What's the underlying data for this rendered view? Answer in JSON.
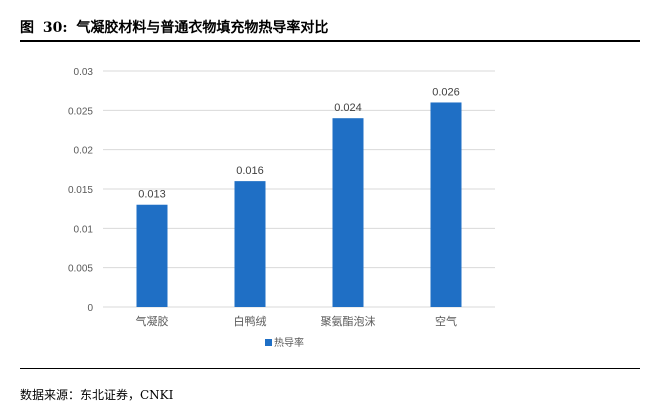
{
  "figure": {
    "label": "图",
    "number": "30:",
    "title": "气凝胶材料与普通衣物填充物热导率对比",
    "source": "数据来源：东北证券，CNKI"
  },
  "colors": {
    "bar": "#1F6FC5",
    "grid": "#D9D9D9",
    "tick_text": "#595959",
    "label_text": "#404040"
  },
  "chart_data": {
    "type": "bar",
    "categories": [
      "气凝胶",
      "白鸭绒",
      "聚氨酯泡沫",
      "空气"
    ],
    "series": [
      {
        "name": "热导率",
        "values": [
          0.013,
          0.016,
          0.024,
          0.026
        ]
      }
    ],
    "data_labels": [
      "0.013",
      "0.016",
      "0.024",
      "0.026"
    ],
    "y_ticks": [
      0,
      0.005,
      0.01,
      0.015,
      0.02,
      0.025,
      0.03
    ],
    "y_tick_labels": [
      "0",
      "0.005",
      "0.01",
      "0.015",
      "0.02",
      "0.025",
      "0.03"
    ],
    "ylim": [
      0,
      0.03
    ],
    "grid": true,
    "legend": "bottom"
  }
}
